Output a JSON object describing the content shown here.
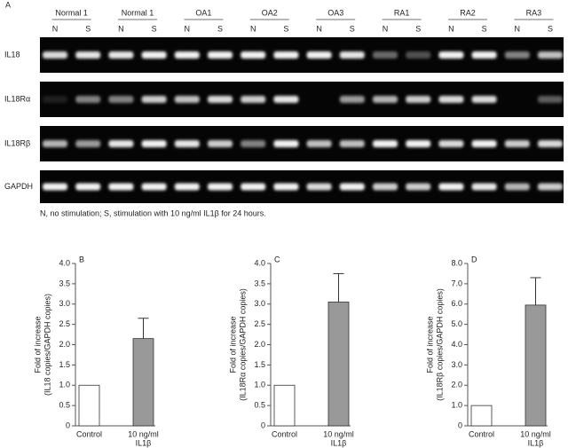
{
  "gel": {
    "panel_label": "A",
    "groups": [
      {
        "name": "Normal 1",
        "lanes": [
          "N",
          "S"
        ]
      },
      {
        "name": "Normal 1",
        "lanes": [
          "N",
          "S"
        ]
      },
      {
        "name": "OA1",
        "lanes": [
          "N",
          "S"
        ]
      },
      {
        "name": "OA2",
        "lanes": [
          "N",
          "S"
        ]
      },
      {
        "name": "OA3",
        "lanes": [
          "N",
          "S"
        ]
      },
      {
        "name": "RA1",
        "lanes": [
          "N",
          "S"
        ]
      },
      {
        "name": "RA2",
        "lanes": [
          "N",
          "S"
        ]
      },
      {
        "name": "RA3",
        "lanes": [
          "N",
          "S"
        ]
      }
    ],
    "rows": [
      "IL18",
      "IL18Rα",
      "IL18Rβ",
      "GAPDH"
    ],
    "caption": "N, no stimulation; S, stimulation with 10 ng/ml IL1β for 24 hours."
  },
  "chart_data": [
    {
      "type": "bar",
      "panel_label": "B",
      "ylabel": [
        "Fold of increase",
        "(IL18 copies/GAPDH copies)"
      ],
      "categories": [
        [
          "Control"
        ],
        [
          "10 ng/ml",
          "IL1β"
        ]
      ],
      "values": [
        1.0,
        2.15
      ],
      "errors": [
        null,
        0.5
      ],
      "colors": [
        "#ffffff",
        "#999999"
      ],
      "ylim": [
        0,
        4
      ],
      "yticks": [
        0,
        0.5,
        {
          "value": 1,
          "label": "1.0"
        },
        1.5,
        {
          "value": 2,
          "label": "2.0"
        },
        2.5,
        {
          "value": 3,
          "label": "3.0"
        },
        3.5,
        {
          "value": 4,
          "label": "4.0"
        }
      ]
    },
    {
      "type": "bar",
      "panel_label": "C",
      "ylabel": [
        "Fold of increase",
        "(IL18Rα copies/GAPDH copies)"
      ],
      "categories": [
        [
          "Control"
        ],
        [
          "10 ng/ml",
          "IL1β"
        ]
      ],
      "values": [
        1.0,
        3.05
      ],
      "errors": [
        null,
        0.7
      ],
      "colors": [
        "#ffffff",
        "#999999"
      ],
      "ylim": [
        0,
        4
      ],
      "yticks": [
        0,
        0.5,
        {
          "value": 1,
          "label": "1.0"
        },
        1.5,
        {
          "value": 2,
          "label": "2.0"
        },
        2.5,
        {
          "value": 3,
          "label": "3.0"
        },
        3.5,
        {
          "value": 4,
          "label": "4.0"
        }
      ]
    },
    {
      "type": "bar",
      "panel_label": "D",
      "ylabel": [
        "Fold of increase",
        "(IL18Rβ copies/GAPDH copies)"
      ],
      "categories": [
        [
          "Control"
        ],
        [
          "10 ng/ml",
          "IL1β"
        ]
      ],
      "values": [
        1.0,
        5.95
      ],
      "errors": [
        null,
        1.35
      ],
      "colors": [
        "#ffffff",
        "#999999"
      ],
      "ylim": [
        0,
        8
      ],
      "yticks": [
        0,
        {
          "value": 1,
          "label": "1.0"
        },
        {
          "value": 2,
          "label": "2.0"
        },
        {
          "value": 3,
          "label": "3.0"
        },
        {
          "value": 4,
          "label": "4.0"
        },
        {
          "value": 5,
          "label": "5.0"
        },
        {
          "value": 6,
          "label": "6.0"
        },
        {
          "value": 7,
          "label": "7.0"
        },
        {
          "value": 8,
          "label": "8.0"
        }
      ]
    }
  ]
}
